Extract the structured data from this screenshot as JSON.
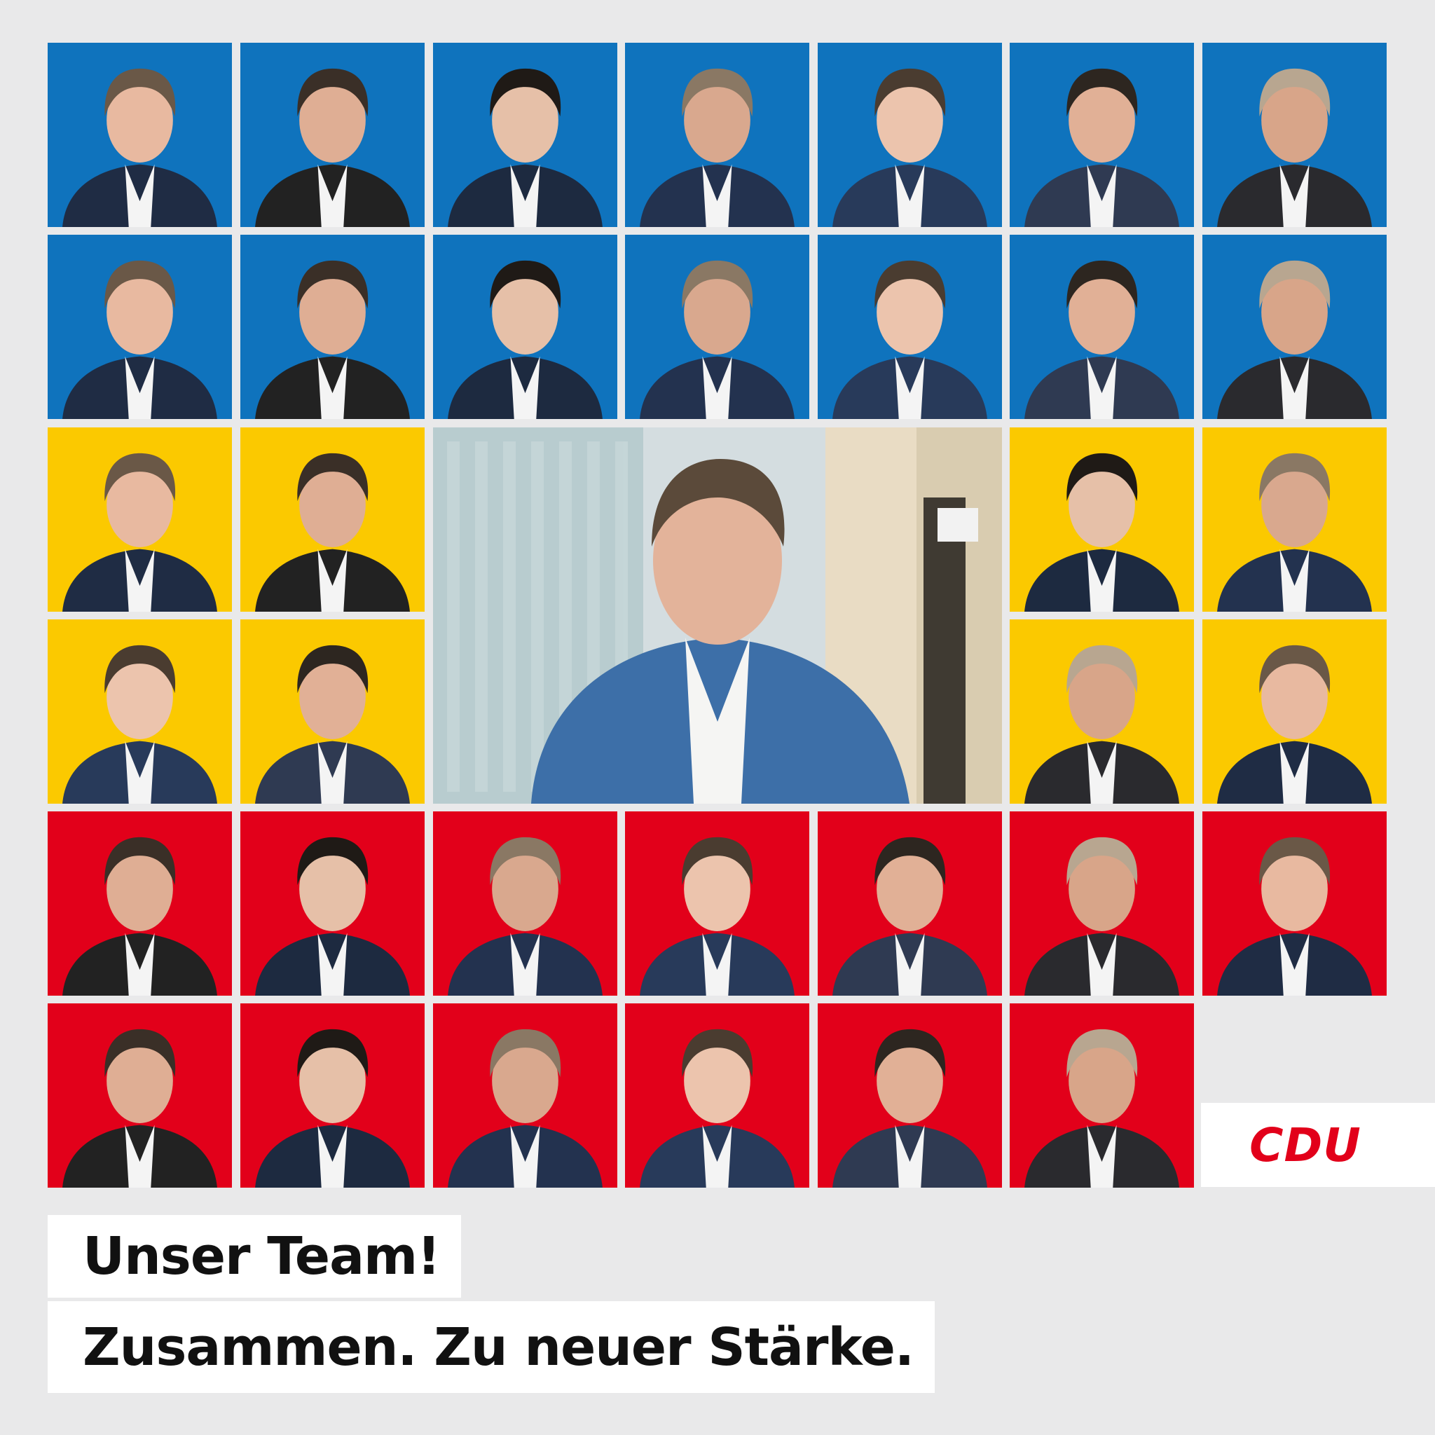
{
  "colors": {
    "blue": "#0f73bd",
    "yellow": "#fbc900",
    "red": "#e2001a",
    "canvas": "#e9e9ea",
    "logo_red": "#e2001a"
  },
  "rows": [
    {
      "color": "blue",
      "portraits": 7
    },
    {
      "color": "blue",
      "portraits": 7
    },
    {
      "color": "yellow",
      "portraits": 4
    },
    {
      "color": "yellow",
      "portraits": 4
    },
    {
      "color": "red",
      "portraits": 7
    },
    {
      "color": "red",
      "portraits": 6
    }
  ],
  "featured_portrait": "lead-candidate-photo",
  "logo": {
    "text": "CDU"
  },
  "headline": {
    "line1": "Unser Team!",
    "line2": "Zusammen. Zu neuer Stärke."
  }
}
